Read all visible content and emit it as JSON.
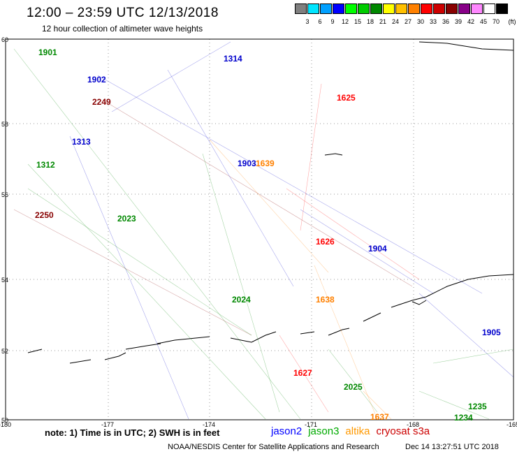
{
  "header": {
    "title": "12:00 – 23:59 UTC 12/13/2018",
    "subtitle": "12 hour collection of altimeter wave heights"
  },
  "color_scale": {
    "unit": "(ft)",
    "bins": [
      {
        "label": "3",
        "color": "#808080"
      },
      {
        "label": "6",
        "color": "#00e5ff"
      },
      {
        "label": "9",
        "color": "#00a0ff"
      },
      {
        "label": "12",
        "color": "#0000ff"
      },
      {
        "label": "15",
        "color": "#00ff00"
      },
      {
        "label": "18",
        "color": "#00cc00"
      },
      {
        "label": "21",
        "color": "#008800"
      },
      {
        "label": "24",
        "color": "#ffff00"
      },
      {
        "label": "27",
        "color": "#ffc000"
      },
      {
        "label": "30",
        "color": "#ff8000"
      },
      {
        "label": "33",
        "color": "#ff0000"
      },
      {
        "label": "36",
        "color": "#cc0000"
      },
      {
        "label": "39",
        "color": "#880000"
      },
      {
        "label": "42",
        "color": "#880088"
      },
      {
        "label": "45",
        "color": "#ff88ff"
      },
      {
        "label": "70",
        "color": "#ffffff"
      },
      {
        "label": "",
        "color": "#000000"
      }
    ]
  },
  "axes": {
    "lat_labels": [
      "60",
      "58",
      "56",
      "54",
      "52",
      "50"
    ],
    "lon_labels": [
      "-180",
      "-177",
      "-174",
      "-171",
      "-168",
      "-165"
    ]
  },
  "tracks": [
    {
      "id": "1901",
      "color": "#008800",
      "mission": "jason3"
    },
    {
      "id": "1902",
      "color": "#0000cc",
      "mission": "jason2"
    },
    {
      "id": "1313",
      "color": "#0000cc",
      "mission": "jason2"
    },
    {
      "id": "1312",
      "color": "#008800",
      "mission": "jason3"
    },
    {
      "id": "2250",
      "color": "#880000",
      "mission": "cryosat s3a"
    },
    {
      "id": "2249",
      "color": "#880000",
      "mission": "cryosat s3a"
    },
    {
      "id": "2023",
      "color": "#008800",
      "mission": "jason3"
    },
    {
      "id": "1314",
      "color": "#0000cc",
      "mission": "jason2"
    },
    {
      "id": "1903",
      "color": "#0000cc",
      "mission": "jason2"
    },
    {
      "id": "1639",
      "color": "#ff8000",
      "mission": "altika"
    },
    {
      "id": "2024",
      "color": "#008800",
      "mission": "jason3"
    },
    {
      "id": "1625",
      "color": "#ff0000",
      "mission": "cryosat s3a"
    },
    {
      "id": "1626",
      "color": "#ff0000",
      "mission": "cryosat s3a"
    },
    {
      "id": "1904",
      "color": "#0000cc",
      "mission": "jason2"
    },
    {
      "id": "1638",
      "color": "#ff8000",
      "mission": "altika"
    },
    {
      "id": "1905",
      "color": "#0000cc",
      "mission": "jason2"
    },
    {
      "id": "1627",
      "color": "#ff0000",
      "mission": "cryosat s3a"
    },
    {
      "id": "2025",
      "color": "#008800",
      "mission": "jason3"
    },
    {
      "id": "1637",
      "color": "#ff8000",
      "mission": "altika"
    },
    {
      "id": "1235",
      "color": "#008800",
      "mission": "jason3"
    },
    {
      "id": "1234",
      "color": "#008800",
      "mission": "jason3"
    }
  ],
  "legend": {
    "missions": [
      {
        "label": "jason2",
        "color": "#0000ff"
      },
      {
        "label": "jason3",
        "color": "#00aa00"
      },
      {
        "label": "altika",
        "color": "#ff9900"
      },
      {
        "label": "cryosat s3a",
        "color": "#cc0000"
      }
    ]
  },
  "footer": {
    "note": "note:  1) Time is in UTC;  2) SWH is in feet",
    "credit": "NOAA/NESDIS Center for Satellite Applications and Research",
    "timestamp": "Dec 14 13:27:51 UTC 2018"
  }
}
